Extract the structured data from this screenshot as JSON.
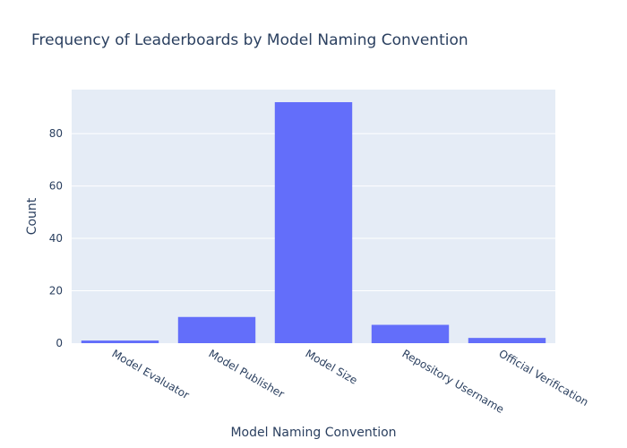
{
  "chart_data": {
    "type": "bar",
    "title": "Frequency of Leaderboards by Model Naming Convention",
    "xlabel": "Model Naming Convention",
    "ylabel": "Count",
    "categories": [
      "Model Evaluator",
      "Model Publisher",
      "Model Size",
      "Repository Username",
      "Official Verification"
    ],
    "values": [
      1,
      10,
      92,
      7,
      2
    ],
    "ylim": [
      0,
      96.8
    ],
    "yticks": [
      0,
      20,
      40,
      60,
      80
    ],
    "grid": true,
    "legend": "none",
    "colors": {
      "bar": "#636efa",
      "plot_bg": "#e5ecf6",
      "grid": "#ffffff",
      "text": "#2a3f5f"
    }
  }
}
